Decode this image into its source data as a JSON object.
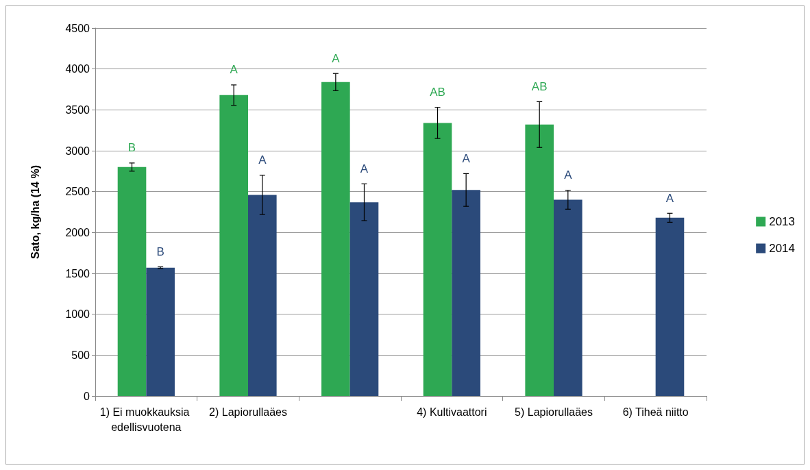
{
  "chart_data": {
    "type": "bar",
    "ylabel": "Sato, kg/ha (14 %)",
    "categories": [
      "1) Ei muokkauksia edellisvuotena",
      "2) Lapiorullaäes",
      null,
      "4) Kultivaattori",
      "5) Lapiorullaäes",
      "6) Tiheä niitto"
    ],
    "series": [
      {
        "name": "2013",
        "color": "#2ea853",
        "values": [
          2800,
          3680,
          3840,
          3340,
          3320,
          null
        ],
        "errors": [
          50,
          125,
          105,
          190,
          280,
          null
        ]
      },
      {
        "name": "2014",
        "color": "#2b4a7a",
        "values": [
          1570,
          2460,
          2370,
          2520,
          2400,
          2180
        ],
        "errors": [
          10,
          240,
          225,
          200,
          115,
          55
        ]
      }
    ],
    "ylim": [
      0,
      4500
    ],
    "yticks": [
      0,
      500,
      1000,
      1500,
      2000,
      2500,
      3000,
      3500,
      4000,
      4500
    ],
    "grid": "y",
    "legend": "right",
    "annotations": [
      "B",
      "B",
      "A",
      "A",
      "A",
      "A",
      "AB",
      "A",
      "AB",
      "A",
      "A"
    ]
  }
}
